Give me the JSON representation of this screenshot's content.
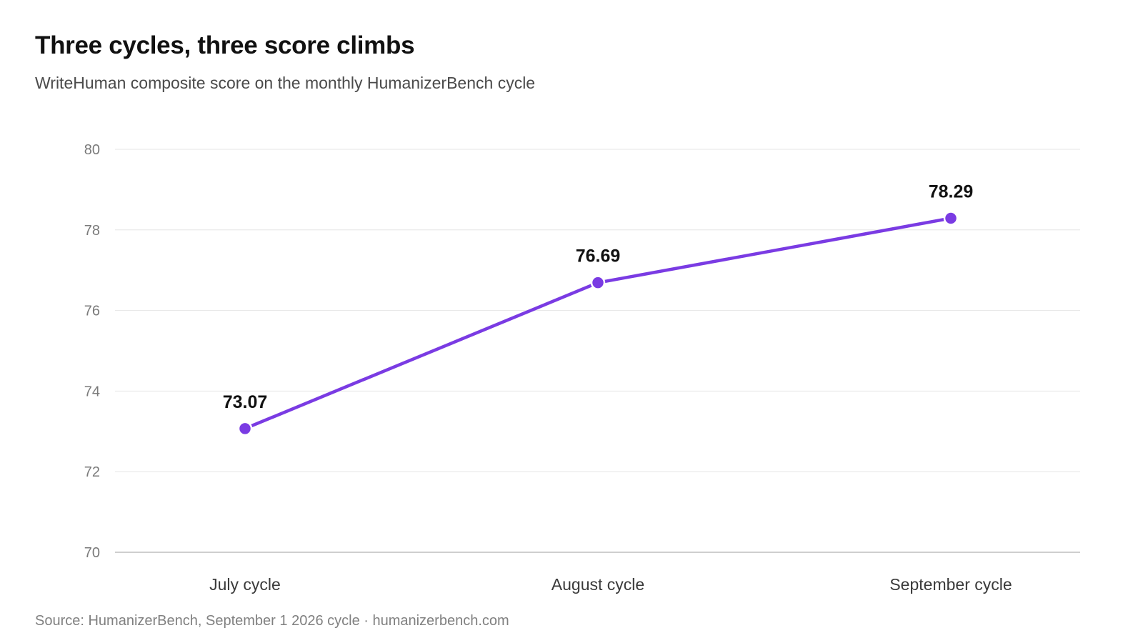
{
  "header": {
    "title": "Three cycles, three score climbs",
    "subtitle": "WriteHuman composite score on the monthly HumanizerBench cycle"
  },
  "footer": {
    "source": "Source: HumanizerBench, September 1 2026 cycle · humanizerbench.com"
  },
  "colors": {
    "series": "#7a3be3",
    "grid": "#e6e6e6",
    "baseline": "#bdbdbd"
  },
  "chart_data": {
    "type": "line",
    "title": "Three cycles, three score climbs",
    "subtitle": "WriteHuman composite score on the monthly HumanizerBench cycle",
    "xlabel": "",
    "ylabel": "",
    "categories": [
      "July cycle",
      "August cycle",
      "September cycle"
    ],
    "values": [
      73.07,
      76.69,
      78.29
    ],
    "data_labels": [
      "73.07",
      "76.69",
      "78.29"
    ],
    "ylim": [
      70,
      80
    ],
    "yticks": [
      70,
      72,
      74,
      76,
      78,
      80
    ],
    "grid": true,
    "legend": "none",
    "markers": true
  }
}
